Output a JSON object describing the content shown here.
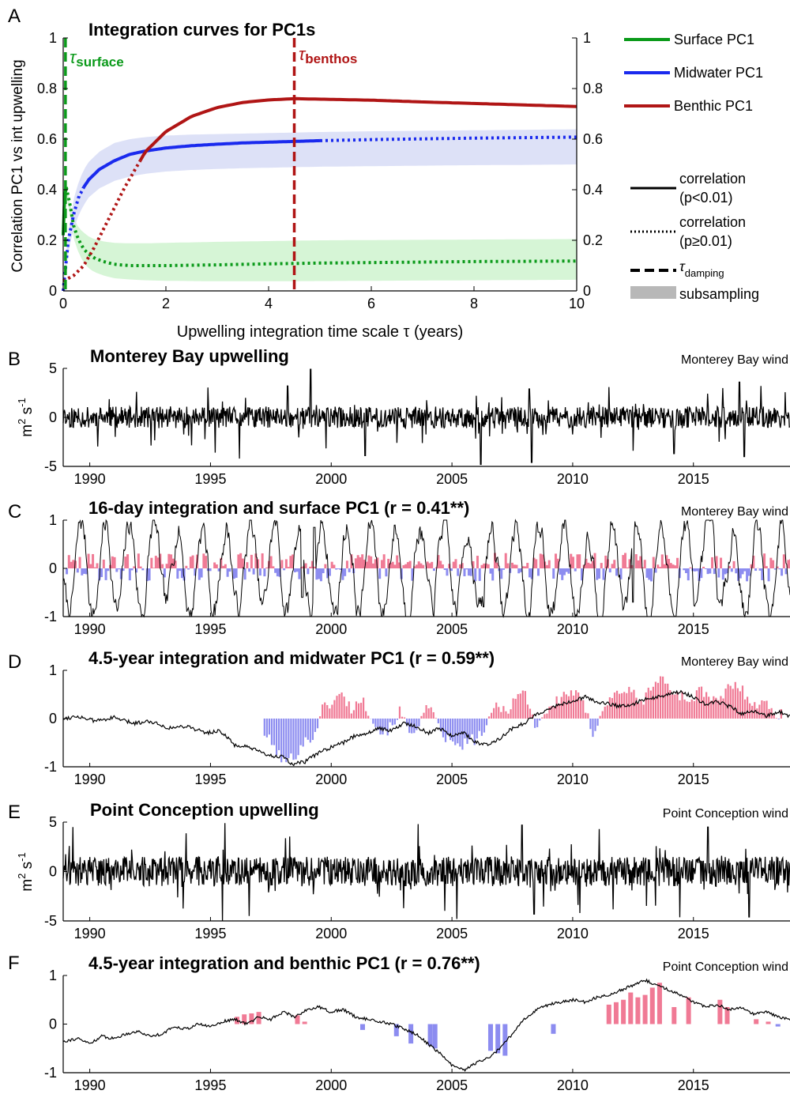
{
  "chart_data": [
    {
      "panel": "A",
      "type": "line",
      "title": "Integration curves for PC1s",
      "xlabel": "Upwelling integration time scale τ (years)",
      "ylabel": "Correlation PC1 vs int upwelling",
      "xlim": [
        0,
        10
      ],
      "ylim": [
        0,
        1
      ],
      "xticks": [
        "0",
        "2",
        "4",
        "6",
        "8",
        "10"
      ],
      "yticks": [
        "0",
        "0.2",
        "0.4",
        "0.6",
        "0.8",
        "1"
      ],
      "yticks_right": [
        "0",
        "0.2",
        "0.4",
        "0.6",
        "0.8",
        "1"
      ],
      "grid": false,
      "legend_position": "outside-right",
      "series": [
        {
          "name": "Surface PC1",
          "color": "#0b9a1a",
          "band_color": "#d6f5d6",
          "significant_until": 0.06,
          "tau_damping": 0.044,
          "tau_label": "τ",
          "tau_sub": "surface",
          "x": [
            0,
            0.02,
            0.04,
            0.06,
            0.08,
            0.1,
            0.15,
            0.2,
            0.3,
            0.4,
            0.5,
            0.6,
            0.8,
            1,
            1.3,
            1.6,
            2,
            3,
            4,
            5,
            6,
            7,
            8,
            9,
            10
          ],
          "y": [
            0.22,
            0.33,
            0.39,
            0.41,
            0.4,
            0.38,
            0.32,
            0.26,
            0.2,
            0.165,
            0.145,
            0.13,
            0.115,
            0.105,
            0.1,
            0.1,
            0.1,
            0.103,
            0.107,
            0.11,
            0.112,
            0.114,
            0.116,
            0.117,
            0.118
          ],
          "band_upper": [
            0.24,
            0.34,
            0.39,
            0.41,
            0.4,
            0.38,
            0.33,
            0.29,
            0.25,
            0.23,
            0.215,
            0.205,
            0.195,
            0.19,
            0.188,
            0.188,
            0.19,
            0.194,
            0.197,
            0.2,
            0.201,
            0.202,
            0.203,
            0.204,
            0.205
          ],
          "band_lower": [
            0.2,
            0.31,
            0.36,
            0.38,
            0.37,
            0.34,
            0.27,
            0.21,
            0.15,
            0.11,
            0.09,
            0.075,
            0.06,
            0.05,
            0.045,
            0.042,
            0.04,
            0.038,
            0.038,
            0.039,
            0.04,
            0.041,
            0.042,
            0.043,
            0.044
          ]
        },
        {
          "name": "Midwater PC1",
          "color": "#1a2aee",
          "band_color": "#dde1f7",
          "significant_from": 0.4,
          "significant_until": 5,
          "x": [
            0,
            0.1,
            0.2,
            0.3,
            0.4,
            0.5,
            0.7,
            1,
            1.3,
            1.6,
            2,
            2.5,
            3,
            3.5,
            4,
            4.5,
            5,
            6,
            7,
            8,
            9,
            10
          ],
          "y": [
            0,
            0.2,
            0.3,
            0.37,
            0.41,
            0.44,
            0.48,
            0.515,
            0.54,
            0.553,
            0.565,
            0.574,
            0.58,
            0.585,
            0.588,
            0.591,
            0.594,
            0.598,
            0.601,
            0.604,
            0.606,
            0.608
          ],
          "band_upper": [
            0.02,
            0.24,
            0.36,
            0.43,
            0.48,
            0.51,
            0.55,
            0.585,
            0.6,
            0.608,
            0.614,
            0.618,
            0.62,
            0.622,
            0.624,
            0.626,
            0.628,
            0.631,
            0.633,
            0.635,
            0.637,
            0.639
          ],
          "band_lower": [
            0,
            0.16,
            0.24,
            0.3,
            0.34,
            0.37,
            0.405,
            0.435,
            0.452,
            0.463,
            0.472,
            0.478,
            0.482,
            0.485,
            0.487,
            0.489,
            0.491,
            0.493,
            0.495,
            0.497,
            0.498,
            0.5
          ]
        },
        {
          "name": "Benthic PC1",
          "color": "#b01515",
          "significant_from": 1.5,
          "tau_damping": 4.5,
          "tau_label": "τ",
          "tau_sub": "benthos",
          "x": [
            0,
            0.2,
            0.4,
            0.6,
            0.8,
            1,
            1.2,
            1.4,
            1.6,
            2,
            2.5,
            3,
            3.5,
            4,
            4.5,
            5,
            6,
            7,
            8,
            9,
            10
          ],
          "y": [
            0.04,
            0.06,
            0.1,
            0.17,
            0.25,
            0.33,
            0.41,
            0.48,
            0.55,
            0.63,
            0.69,
            0.725,
            0.745,
            0.755,
            0.76,
            0.758,
            0.754,
            0.747,
            0.741,
            0.735,
            0.729
          ]
        }
      ],
      "legend_styles": [
        {
          "label": "correlation",
          "label2": "(p<0.01)"
        },
        {
          "label": "correlation",
          "label2": "(p≥0.01)"
        },
        {
          "label": "τ",
          "label_sub": "damping"
        },
        {
          "label": "subsampling"
        }
      ]
    },
    {
      "panel": "B",
      "type": "line",
      "title": "Monterey Bay upwelling",
      "source_label": "Monterey Bay wind",
      "ylabel": "m",
      "ylabel_sup1": "2",
      "ylabel_s": " s",
      "ylabel_sup2": "-1",
      "xlim": [
        1988.9,
        2019
      ],
      "ylim": [
        -5,
        5
      ],
      "yticks": [
        "-5",
        "0",
        "5"
      ],
      "xticks": [
        "1990",
        "1995",
        "2000",
        "2005",
        "2010",
        "2015"
      ],
      "line_color": "#000000",
      "events": [
        [
          1999.15,
          4.9
        ],
        [
          1998.2,
          3.2
        ],
        [
          2008.2,
          2.9
        ],
        [
          2011.5,
          3.1
        ],
        [
          2016.9,
          3.6
        ],
        [
          2017.8,
          3.2
        ],
        [
          1996.2,
          -4.2
        ],
        [
          2001.4,
          -3.9
        ],
        [
          2006.2,
          -4.8
        ],
        [
          2008.3,
          -4.6
        ],
        [
          2012.5,
          -3.4
        ],
        [
          2014.2,
          -3.7
        ],
        [
          2017.1,
          -4.0
        ],
        [
          1995.2,
          -3.6
        ]
      ]
    },
    {
      "panel": "C",
      "type": "bar",
      "title": "16-day integration and surface PC1 (r = 0.41**)",
      "source_label": "Monterey Bay wind",
      "xlim": [
        1988.9,
        2019
      ],
      "ylim": [
        -1,
        1
      ],
      "yticks": [
        "-1",
        "0",
        "1"
      ],
      "xticks": [
        "1990",
        "1995",
        "2000",
        "2005",
        "2010",
        "2015"
      ],
      "pos_color": "#f07a95",
      "neg_color": "#8c8cf0",
      "line_color": "#000000",
      "events": [
        [
          1999.3,
          0.85
        ],
        [
          2008.6,
          0.75
        ],
        [
          2017.7,
          0.8
        ],
        [
          1995.1,
          -1.0
        ],
        [
          2017.2,
          -0.9
        ],
        [
          2012.5,
          -0.7
        ],
        [
          2006.3,
          -0.8
        ],
        [
          1998.8,
          -0.6
        ]
      ]
    },
    {
      "panel": "D",
      "type": "bar",
      "title": "4.5-year integration and midwater PC1 (r = 0.59**)",
      "source_label": "Monterey Bay wind",
      "xlim": [
        1988.9,
        2019
      ],
      "ylim": [
        -1,
        1
      ],
      "yticks": [
        "-1",
        "0",
        "1"
      ],
      "xticks": [
        "1990",
        "1995",
        "2000",
        "2005",
        "2010",
        "2015"
      ],
      "pos_color": "#f07a95",
      "neg_color": "#8c8cf0",
      "line_color": "#000000",
      "bars_start": 1997.2,
      "line_x": [
        1988.9,
        1989.5,
        1990.2,
        1991,
        1991.8,
        1992.5,
        1993.3,
        1994,
        1994.8,
        1995.4,
        1996,
        1996.6,
        1997.3,
        1998,
        1998.4,
        1998.9,
        1999.5,
        2000,
        2000.5,
        2001,
        2001.5,
        2002,
        2002.5,
        2003,
        2003.5,
        2004,
        2004.5,
        2005,
        2005.5,
        2006,
        2006.4,
        2007,
        2007.5,
        2008,
        2008.5,
        2009,
        2009.5,
        2010,
        2010.5,
        2011,
        2011.5,
        2012,
        2012.5,
        2013,
        2013.5,
        2014,
        2014.5,
        2015,
        2015.5,
        2016,
        2016.5,
        2017,
        2017.5,
        2018,
        2018.5,
        2019
      ],
      "line_y": [
        0.0,
        0.05,
        -0.05,
        0.02,
        -0.1,
        -0.05,
        -0.2,
        -0.15,
        -0.3,
        -0.25,
        -0.55,
        -0.6,
        -0.75,
        -0.8,
        -0.95,
        -0.9,
        -0.7,
        -0.6,
        -0.5,
        -0.35,
        -0.3,
        -0.2,
        -0.25,
        -0.1,
        -0.15,
        -0.3,
        -0.2,
        -0.35,
        -0.3,
        -0.5,
        -0.55,
        -0.4,
        -0.2,
        -0.1,
        0.1,
        0.2,
        0.3,
        0.35,
        0.45,
        0.35,
        0.3,
        0.25,
        0.3,
        0.4,
        0.45,
        0.5,
        0.55,
        0.45,
        0.3,
        0.35,
        0.25,
        0.1,
        0.15,
        0.05,
        0.15,
        0.05
      ],
      "bar_y_x": [
        1997.2,
        1997.6,
        1998,
        1998.4,
        1998.8,
        1999.2,
        1999.6,
        2000,
        2000.4,
        2000.8,
        2001.2,
        2001.6,
        2002,
        2002.4,
        2002.8,
        2003.2,
        2003.6,
        2004,
        2004.4,
        2004.8,
        2005.2,
        2005.6,
        2006,
        2006.4,
        2006.8,
        2007.2,
        2007.6,
        2008,
        2008.4,
        2008.8,
        2009.2,
        2009.6,
        2010,
        2010.4,
        2010.8,
        2011.2,
        2011.6,
        2012,
        2012.4,
        2012.8,
        2013.2,
        2013.6,
        2014,
        2014.4,
        2014.8,
        2015.2,
        2015.6,
        2016,
        2016.4,
        2016.8,
        2017.2,
        2017.6,
        2018,
        2018.4
      ],
      "bar_y": [
        -0.3,
        -0.6,
        -0.9,
        -0.8,
        -0.5,
        -0.4,
        0.2,
        0.35,
        0.5,
        0.2,
        0.4,
        0.1,
        -0.3,
        -0.2,
        0.15,
        -0.3,
        -0.1,
        0.25,
        -0.2,
        -0.45,
        -0.6,
        -0.5,
        -0.4,
        -0.2,
        0.3,
        0.15,
        0.45,
        0.55,
        -0.15,
        0.1,
        0.3,
        0.5,
        0.55,
        0.3,
        -0.3,
        0.2,
        0.45,
        0.6,
        0.55,
        0.3,
        0.65,
        0.85,
        0.6,
        0.5,
        0.35,
        0.6,
        0.45,
        0.3,
        0.65,
        0.7,
        0.45,
        0.3,
        0.3,
        0.1
      ]
    },
    {
      "panel": "E",
      "type": "line",
      "title": "Point Conception upwelling",
      "source_label": "Point Conception wind",
      "ylabel": "m",
      "ylabel_sup1": "2",
      "ylabel_s": " s",
      "ylabel_sup2": "-1",
      "xlim": [
        1988.9,
        2019
      ],
      "ylim": [
        -5,
        5
      ],
      "yticks": [
        "-5",
        "0",
        "5"
      ],
      "xticks": [
        "1990",
        "1995",
        "2000",
        "2005",
        "2010",
        "2015"
      ],
      "line_color": "#000000",
      "events": [
        [
          1989.3,
          4.5
        ],
        [
          1995.6,
          4.9
        ],
        [
          2003.6,
          4.8
        ],
        [
          2007.9,
          4.7
        ],
        [
          2011.1,
          4.3
        ],
        [
          2015.6,
          4.5
        ],
        [
          1995.5,
          -5.0
        ],
        [
          1996.6,
          -4.5
        ],
        [
          2005.2,
          -4.8
        ],
        [
          2008.4,
          -4.3
        ],
        [
          2017.3,
          -4.6
        ],
        [
          2010.3,
          -4.2
        ]
      ]
    },
    {
      "panel": "F",
      "type": "bar",
      "title": "4.5-year integration and benthic PC1 (r = 0.76**)",
      "source_label": "Point Conception wind",
      "xlim": [
        1988.9,
        2019
      ],
      "ylim": [
        -1,
        1
      ],
      "yticks": [
        "-1",
        "0",
        "1"
      ],
      "xticks": [
        "1990",
        "1995",
        "2000",
        "2005",
        "2010",
        "2015"
      ],
      "pos_color": "#f07a95",
      "neg_color": "#8c8cf0",
      "line_color": "#000000",
      "line_x": [
        1988.9,
        1989.5,
        1990,
        1990.5,
        1991,
        1991.5,
        1992,
        1992.5,
        1993,
        1993.5,
        1994,
        1994.5,
        1995,
        1995.5,
        1996,
        1996.5,
        1997,
        1997.5,
        1998,
        1998.5,
        1999,
        1999.5,
        2000,
        2000.5,
        2001,
        2001.5,
        2002,
        2002.5,
        2003,
        2003.5,
        2004,
        2004.5,
        2005,
        2005.5,
        2006,
        2006.5,
        2007,
        2007.5,
        2008,
        2008.5,
        2009,
        2009.5,
        2010,
        2010.5,
        2011,
        2011.5,
        2012,
        2012.5,
        2013,
        2013.5,
        2014,
        2014.5,
        2015,
        2015.5,
        2016,
        2016.5,
        2017,
        2017.5,
        2018,
        2018.5,
        2019
      ],
      "line_y": [
        -0.35,
        -0.3,
        -0.4,
        -0.25,
        -0.3,
        -0.2,
        -0.15,
        -0.25,
        -0.2,
        -0.05,
        -0.1,
        0.0,
        -0.05,
        0.05,
        0.1,
        0.0,
        0.15,
        0.1,
        0.25,
        0.15,
        0.3,
        0.35,
        0.25,
        0.3,
        0.15,
        0.1,
        0.05,
        0.0,
        -0.1,
        -0.2,
        -0.4,
        -0.6,
        -0.85,
        -0.95,
        -0.8,
        -0.7,
        -0.5,
        -0.2,
        0.1,
        0.3,
        0.4,
        0.45,
        0.5,
        0.45,
        0.55,
        0.6,
        0.7,
        0.8,
        0.9,
        0.8,
        0.7,
        0.6,
        0.45,
        0.35,
        0.4,
        0.3,
        0.35,
        0.2,
        0.25,
        0.15,
        0.1
      ],
      "bar_x": [
        1996.1,
        1996.4,
        1996.7,
        1997.0,
        1998.6,
        1998.9,
        2001.3,
        2002.7,
        2003.3,
        2004.1,
        2004.3,
        2006.6,
        2006.9,
        2007.2,
        2009.2,
        2011.5,
        2011.8,
        2012.1,
        2012.4,
        2012.7,
        2013.0,
        2013.3,
        2013.6,
        2014.2,
        2014.8,
        2016.1,
        2016.4,
        2017.6,
        2018.1,
        2018.5
      ],
      "bar_y": [
        0.15,
        0.2,
        0.22,
        0.25,
        0.18,
        0.05,
        -0.12,
        -0.25,
        -0.4,
        -0.45,
        -0.5,
        -0.55,
        -0.6,
        -0.65,
        -0.2,
        0.4,
        0.45,
        0.5,
        0.65,
        0.55,
        0.6,
        0.75,
        0.85,
        0.35,
        0.55,
        0.5,
        0.35,
        0.1,
        0.05,
        -0.05
      ]
    }
  ],
  "panel_letters": [
    "A",
    "B",
    "C",
    "D",
    "E",
    "F"
  ]
}
